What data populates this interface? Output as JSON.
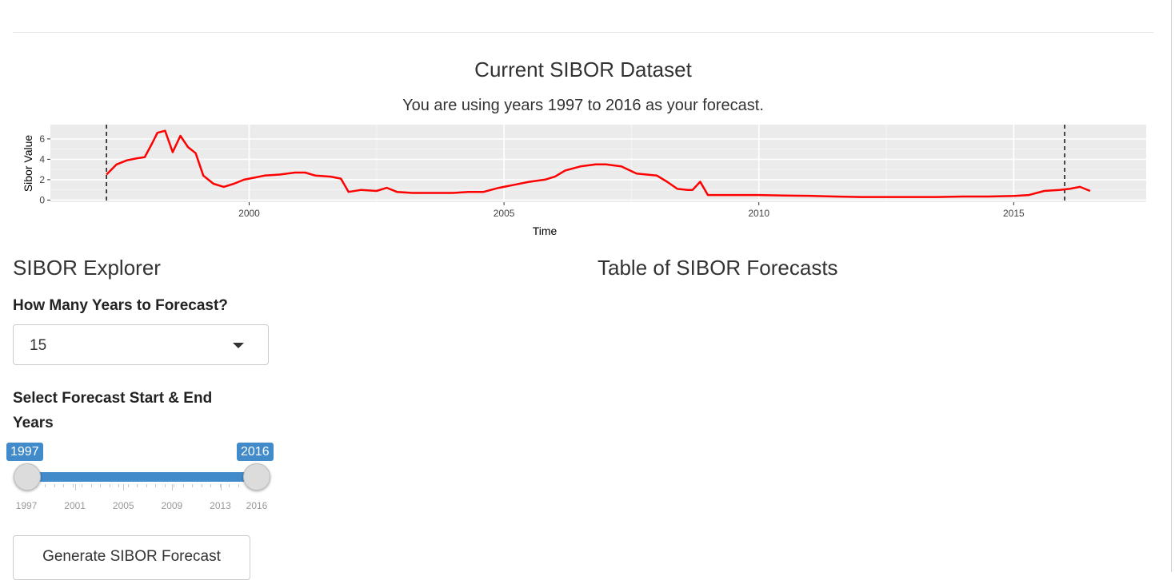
{
  "page": {
    "title": "Current SIBOR Dataset",
    "subtitle": "You are using years 1997 to 2016 as your forecast."
  },
  "sidebar": {
    "heading": "SIBOR Explorer",
    "years_label": "How Many Years to Forecast?",
    "years_select": {
      "value": "15"
    },
    "range_label_line1": "Select Forecast Start & End",
    "range_label_line2": "Years",
    "slider": {
      "min": 1997,
      "max": 2016,
      "from": 1997,
      "to": 2016,
      "from_label": "1997",
      "to_label": "2016",
      "grid_labels": [
        "1997",
        "2001",
        "2005",
        "2009",
        "2013",
        "2016"
      ]
    },
    "generate_button": "Generate SIBOR Forecast"
  },
  "main": {
    "table_heading": "Table of SIBOR Forecasts"
  },
  "chart_data": {
    "type": "line",
    "xlabel": "Time",
    "ylabel": "Sibor Value",
    "xlim": [
      1996.1,
      2017.6
    ],
    "ylim": [
      -0.2,
      7.4
    ],
    "x_ticks": [
      2000,
      2005,
      2010,
      2015
    ],
    "x_tick_labels": [
      "2000",
      "2005",
      "2010",
      "2015"
    ],
    "y_ticks": [
      0,
      2,
      4,
      6
    ],
    "y_tick_labels": [
      "0",
      "2",
      "4",
      "6"
    ],
    "grid": true,
    "line_color": "#ff0000",
    "vlines": [
      1997.2,
      2016.0
    ],
    "series": [
      {
        "x": [
          1997.2,
          1997.4,
          1997.6,
          1997.8,
          1997.95,
          1998.1,
          1998.2,
          1998.35,
          1998.5,
          1998.65,
          1998.8,
          1998.95,
          1999.1,
          1999.3,
          1999.5,
          1999.7,
          1999.9,
          2000.1,
          2000.3,
          2000.6,
          2000.9,
          2001.1,
          2001.3,
          2001.6,
          2001.8,
          2001.95,
          2002.2,
          2002.5,
          2002.7,
          2002.9,
          2003.2,
          2003.6,
          2004.0,
          2004.3,
          2004.6,
          2004.9,
          2005.2,
          2005.5,
          2005.8,
          2006.0,
          2006.2,
          2006.5,
          2006.8,
          2007.0,
          2007.3,
          2007.6,
          2007.8,
          2008.0,
          2008.2,
          2008.4,
          2008.6,
          2008.7,
          2008.85,
          2009.0,
          2009.5,
          2010.0,
          2010.5,
          2011.0,
          2011.5,
          2012.0,
          2012.5,
          2013.0,
          2013.5,
          2014.0,
          2014.5,
          2015.0,
          2015.3,
          2015.6,
          2015.9,
          2016.1,
          2016.3,
          2016.5
        ],
        "y": [
          2.5,
          3.5,
          3.9,
          4.1,
          4.2,
          5.6,
          6.6,
          6.8,
          4.7,
          6.3,
          5.2,
          4.6,
          2.4,
          1.6,
          1.3,
          1.6,
          2.0,
          2.2,
          2.4,
          2.5,
          2.7,
          2.7,
          2.4,
          2.3,
          2.1,
          0.8,
          1.0,
          0.9,
          1.2,
          0.8,
          0.7,
          0.7,
          0.7,
          0.8,
          0.8,
          1.2,
          1.5,
          1.8,
          2.0,
          2.3,
          2.9,
          3.3,
          3.5,
          3.5,
          3.3,
          2.6,
          2.5,
          2.4,
          1.8,
          1.1,
          1.0,
          1.0,
          1.8,
          0.5,
          0.5,
          0.5,
          0.45,
          0.42,
          0.35,
          0.3,
          0.3,
          0.3,
          0.3,
          0.35,
          0.35,
          0.4,
          0.5,
          0.9,
          1.0,
          1.1,
          1.3,
          0.9
        ]
      }
    ]
  }
}
